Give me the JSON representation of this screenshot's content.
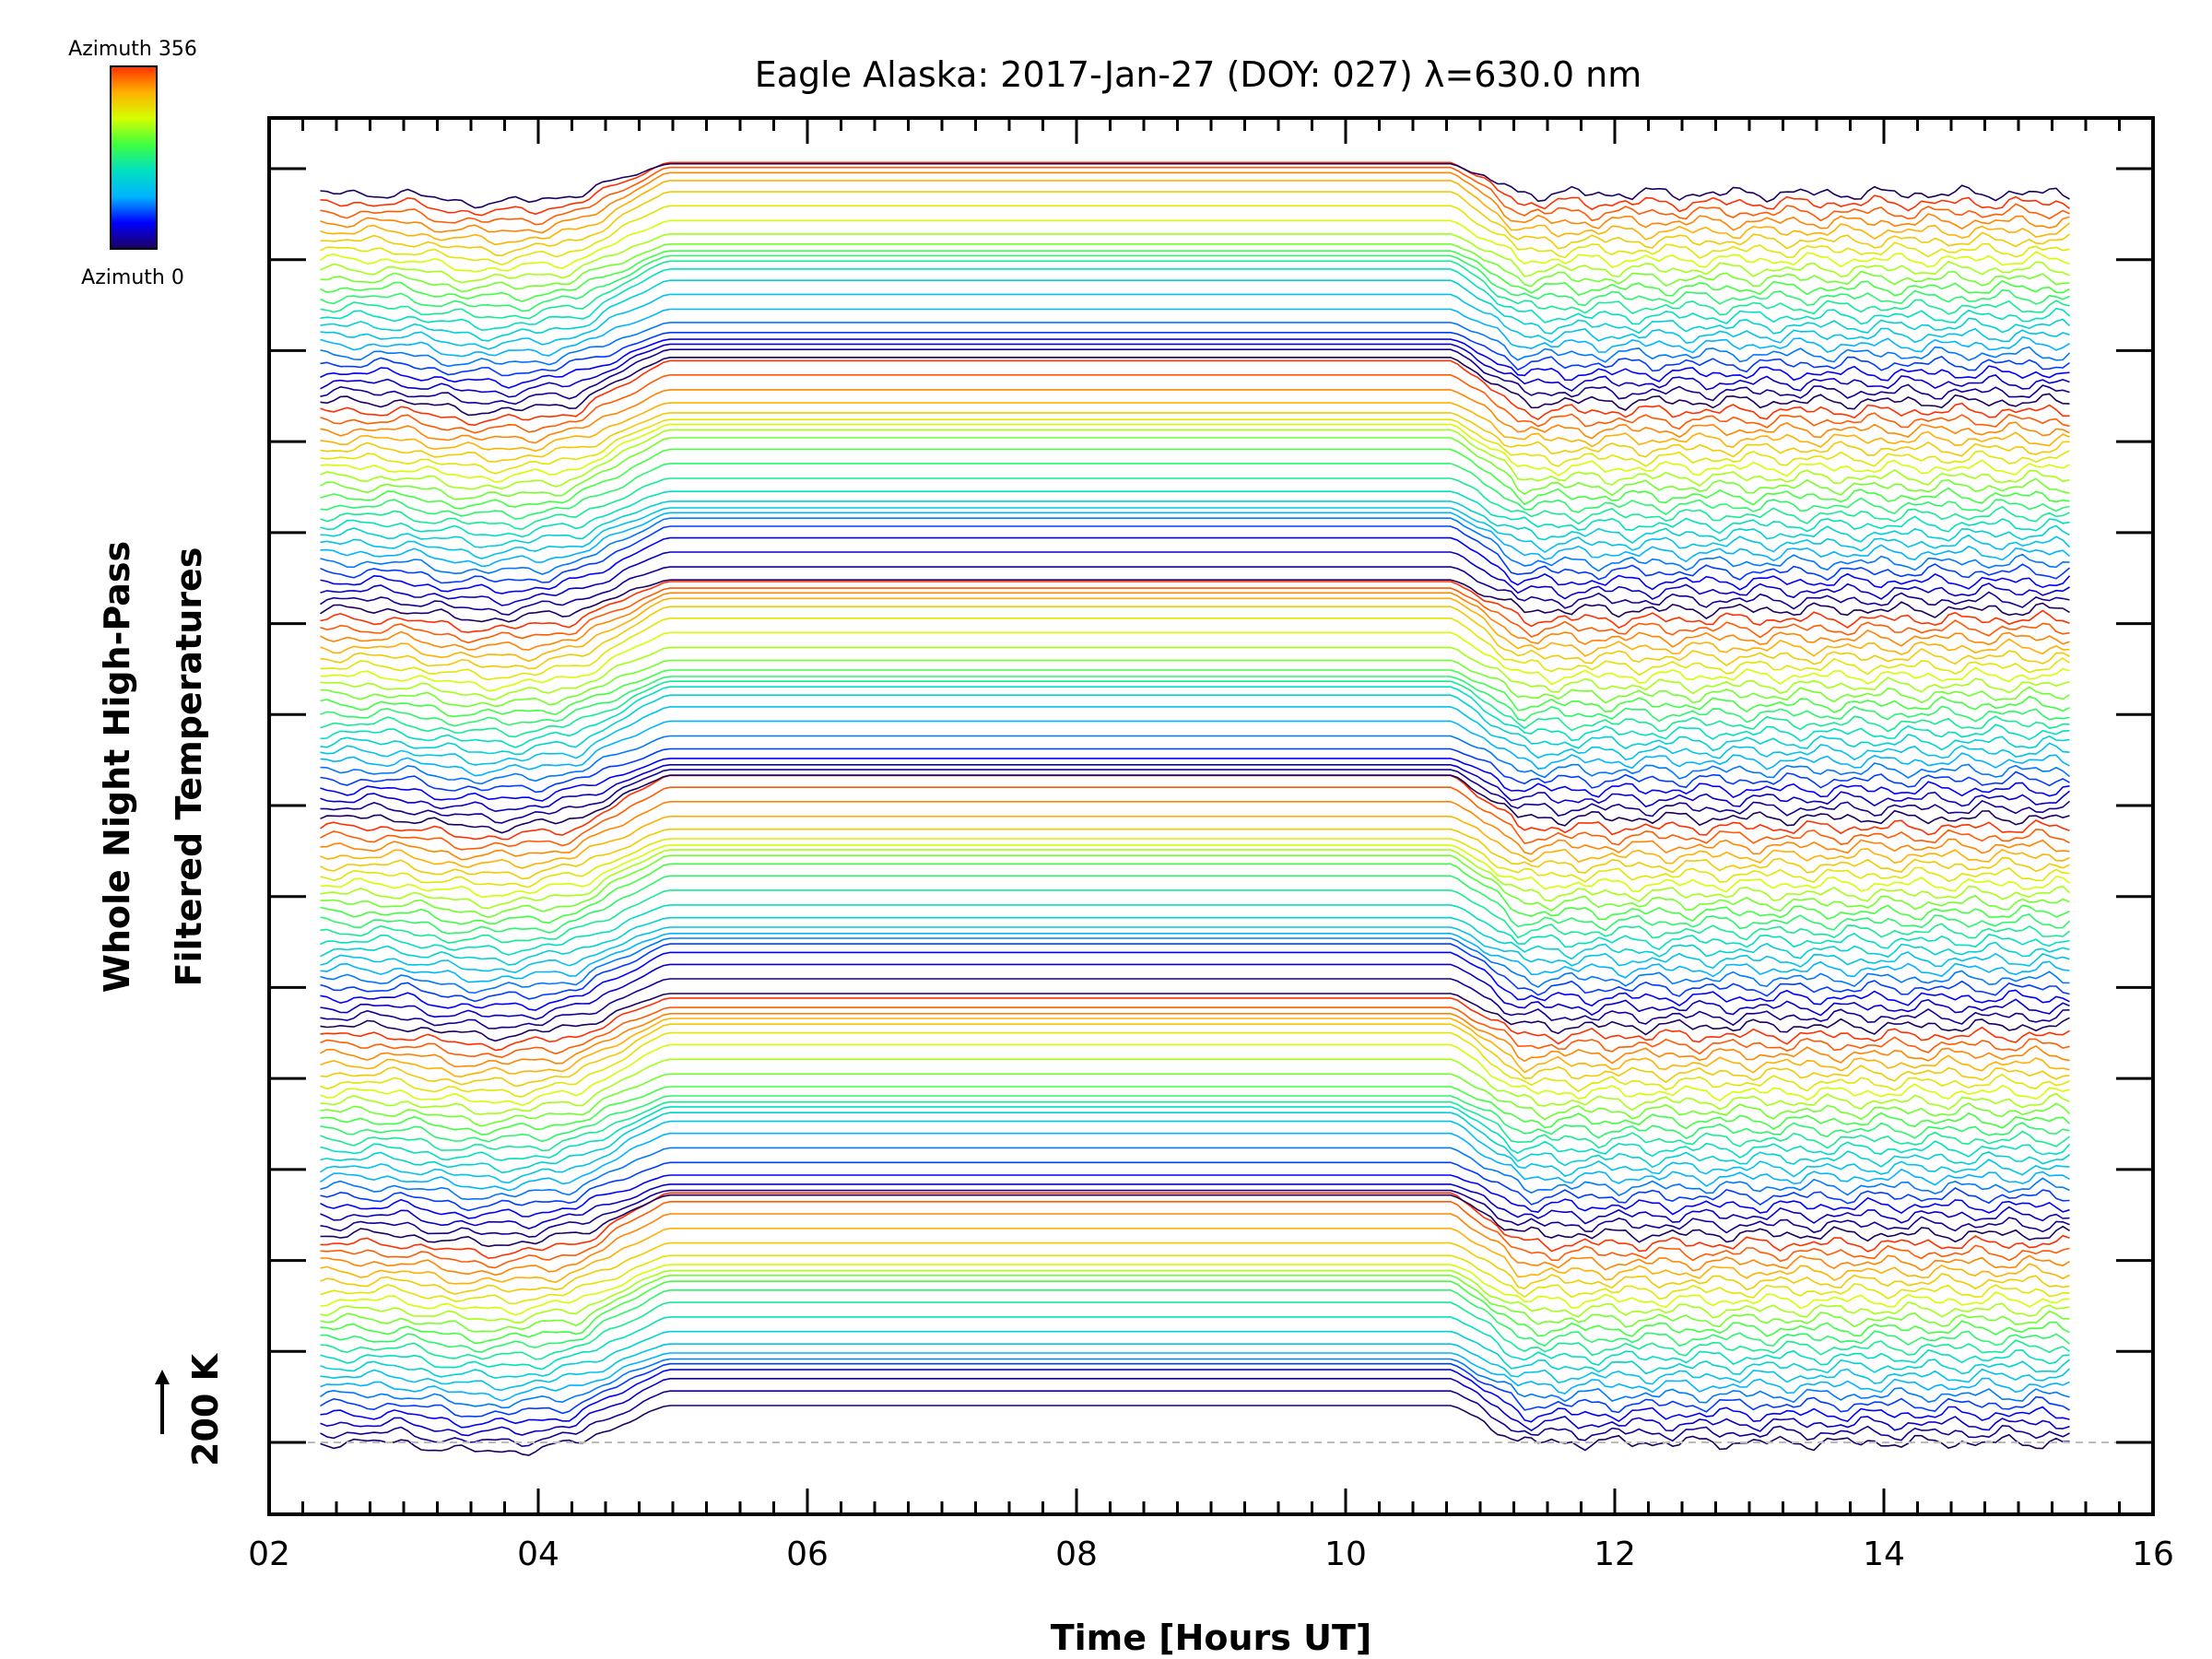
{
  "chart_data": {
    "type": "line",
    "title": "Eagle Alaska: 2017-Jan-27 (DOY: 027) λ=630.0 nm",
    "xlabel": "Time [Hours UT]",
    "ylabel_line1": "Whole Night High-Pass",
    "ylabel_line2": "Filtered Temperatures",
    "xlim": [
      2,
      16
    ],
    "x_ticks": [
      "02",
      "04",
      "06",
      "08",
      "10",
      "12",
      "14",
      "16"
    ],
    "x_range_data": [
      2.38,
      15.38
    ],
    "flat_interval_hours": [
      4.95,
      10.8
    ],
    "scale_bar_label": "200 K",
    "colorbar": {
      "top_label": "Azimuth 356",
      "bottom_label": "Azimuth 0",
      "min": 0,
      "max": 356,
      "colormap": [
        "#1c0060",
        "#0000ff",
        "#00b4ff",
        "#00e0c0",
        "#40ff40",
        "#d4ff00",
        "#ffb000",
        "#ff3000"
      ]
    },
    "series_count": 133,
    "azimuth_cycle_length": 22,
    "baseline_dashed": true,
    "grid": false,
    "legend": "none"
  }
}
